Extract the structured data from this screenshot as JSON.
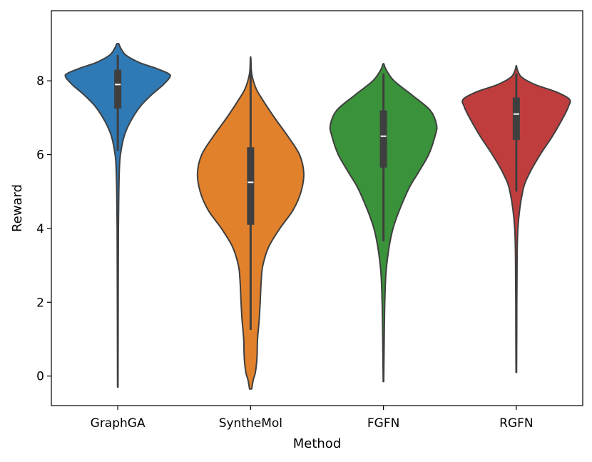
{
  "chart_data": {
    "type": "violin",
    "title": "",
    "xlabel": "Method",
    "ylabel": "Reward",
    "ylim": [
      -0.8,
      9.9
    ],
    "yticks": [
      0,
      2,
      4,
      6,
      8
    ],
    "categories": [
      "GraphGA",
      "SyntheMol",
      "FGFN",
      "RGFN"
    ],
    "colors": [
      "#2f79b5",
      "#e1812c",
      "#3a923a",
      "#c03d3e"
    ],
    "series": [
      {
        "name": "GraphGA",
        "min": -0.3,
        "max": 9.0,
        "whisker_low": 6.1,
        "whisker_high": 8.7,
        "q1": 7.25,
        "median": 7.9,
        "q3": 8.3,
        "density": [
          [
            -0.3,
            0.004
          ],
          [
            0.0,
            0.005
          ],
          [
            2.0,
            0.008
          ],
          [
            4.0,
            0.012
          ],
          [
            5.0,
            0.02
          ],
          [
            5.6,
            0.03
          ],
          [
            6.0,
            0.05
          ],
          [
            6.5,
            0.12
          ],
          [
            6.9,
            0.24
          ],
          [
            7.3,
            0.42
          ],
          [
            7.6,
            0.62
          ],
          [
            7.9,
            0.86
          ],
          [
            8.1,
            0.98
          ],
          [
            8.2,
            0.95
          ],
          [
            8.35,
            0.7
          ],
          [
            8.5,
            0.4
          ],
          [
            8.7,
            0.15
          ],
          [
            8.9,
            0.05
          ],
          [
            9.0,
            0.02
          ]
        ]
      },
      {
        "name": "SyntheMol",
        "min": -0.35,
        "max": 8.6,
        "whisker_low": 1.25,
        "whisker_high": 8.3,
        "q1": 4.1,
        "median": 5.25,
        "q3": 6.2,
        "density": [
          [
            -0.35,
            0.02
          ],
          [
            -0.1,
            0.05
          ],
          [
            0.1,
            0.09
          ],
          [
            0.5,
            0.12
          ],
          [
            1.0,
            0.13
          ],
          [
            1.5,
            0.16
          ],
          [
            2.0,
            0.18
          ],
          [
            2.6,
            0.2
          ],
          [
            3.0,
            0.23
          ],
          [
            3.5,
            0.34
          ],
          [
            4.0,
            0.55
          ],
          [
            4.5,
            0.8
          ],
          [
            5.0,
            0.95
          ],
          [
            5.5,
            1.0
          ],
          [
            6.0,
            0.92
          ],
          [
            6.5,
            0.7
          ],
          [
            7.0,
            0.45
          ],
          [
            7.5,
            0.22
          ],
          [
            7.8,
            0.1
          ],
          [
            8.2,
            0.02
          ],
          [
            8.6,
            0.005
          ]
        ]
      },
      {
        "name": "FGFN",
        "min": -0.15,
        "max": 8.45,
        "whisker_low": 3.65,
        "whisker_high": 8.2,
        "q1": 5.65,
        "median": 6.5,
        "q3": 7.2,
        "density": [
          [
            -0.15,
            0.005
          ],
          [
            0.5,
            0.01
          ],
          [
            2.0,
            0.025
          ],
          [
            3.0,
            0.06
          ],
          [
            4.0,
            0.18
          ],
          [
            5.0,
            0.45
          ],
          [
            5.5,
            0.65
          ],
          [
            6.0,
            0.85
          ],
          [
            6.5,
            0.97
          ],
          [
            6.8,
            1.0
          ],
          [
            7.2,
            0.88
          ],
          [
            7.6,
            0.55
          ],
          [
            8.0,
            0.2
          ],
          [
            8.3,
            0.05
          ],
          [
            8.45,
            0.01
          ]
        ]
      },
      {
        "name": "RGFN",
        "min": 0.1,
        "max": 8.4,
        "whisker_low": 5.0,
        "whisker_high": 8.2,
        "q1": 6.4,
        "median": 7.1,
        "q3": 7.55,
        "density": [
          [
            0.1,
            0.005
          ],
          [
            1.0,
            0.008
          ],
          [
            2.5,
            0.012
          ],
          [
            4.0,
            0.03
          ],
          [
            5.0,
            0.12
          ],
          [
            5.5,
            0.25
          ],
          [
            6.0,
            0.45
          ],
          [
            6.5,
            0.68
          ],
          [
            7.0,
            0.88
          ],
          [
            7.3,
            0.98
          ],
          [
            7.5,
            1.0
          ],
          [
            7.7,
            0.75
          ],
          [
            7.9,
            0.35
          ],
          [
            8.1,
            0.1
          ],
          [
            8.3,
            0.02
          ],
          [
            8.4,
            0.005
          ]
        ]
      }
    ]
  }
}
